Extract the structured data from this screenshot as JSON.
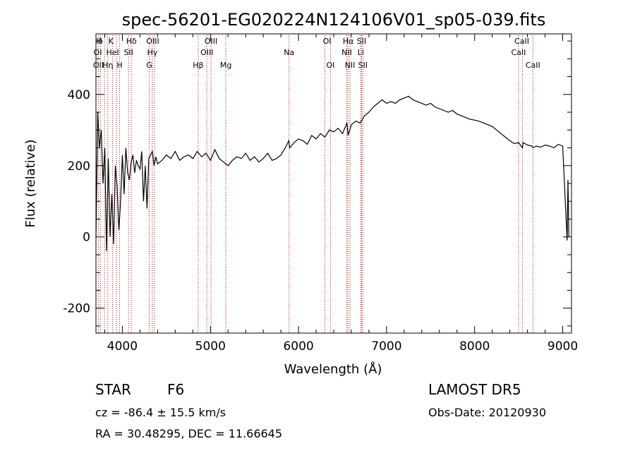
{
  "chart_data": {
    "type": "line",
    "title": "spec-56201-EG020224N124106V01_sp05-039.fits",
    "xlabel": "Wavelength (Å)",
    "ylabel": "Flux (relative)",
    "xlim": [
      3700,
      9100
    ],
    "ylim": [
      -270,
      570
    ],
    "grid": false,
    "xticks": [
      4000,
      5000,
      6000,
      7000,
      8000,
      9000
    ],
    "yticks": [
      -200,
      0,
      200,
      400
    ],
    "line_color": "#000000",
    "marker_line_color": "#cc0000",
    "series": [
      {
        "x": [
          3700,
          3720,
          3740,
          3760,
          3780,
          3800,
          3820,
          3840,
          3860,
          3880,
          3900,
          3920,
          3940,
          3960,
          3980,
          4000,
          4020,
          4040,
          4060,
          4080,
          4100,
          4120,
          4140,
          4160,
          4180,
          4200,
          4220,
          4240,
          4260,
          4280,
          4300,
          4320,
          4340,
          4360,
          4380,
          4400,
          4450,
          4500,
          4550,
          4600,
          4650,
          4700,
          4750,
          4800,
          4850,
          4900,
          4950,
          5000,
          5050,
          5100,
          5150,
          5200,
          5250,
          5300,
          5350,
          5400,
          5450,
          5500,
          5550,
          5600,
          5650,
          5700,
          5750,
          5800,
          5850,
          5890,
          5900,
          5950,
          6000,
          6050,
          6100,
          6150,
          6200,
          6250,
          6300,
          6350,
          6400,
          6450,
          6500,
          6550,
          6563,
          6600,
          6650,
          6700,
          6750,
          6800,
          6850,
          6900,
          6950,
          7000,
          7050,
          7100,
          7150,
          7200,
          7250,
          7300,
          7350,
          7400,
          7450,
          7500,
          7550,
          7600,
          7650,
          7700,
          7750,
          7800,
          7850,
          7900,
          7950,
          8000,
          8050,
          8100,
          8150,
          8200,
          8250,
          8300,
          8350,
          8400,
          8450,
          8500,
          8542,
          8550,
          8600,
          8650,
          8662,
          8700,
          8750,
          8800,
          8850,
          8900,
          8950,
          9000,
          9050,
          9060,
          9070
        ],
        "values": [
          0,
          350,
          250,
          300,
          150,
          250,
          -40,
          220,
          0,
          120,
          -20,
          200,
          140,
          20,
          100,
          230,
          120,
          250,
          180,
          160,
          210,
          230,
          180,
          215,
          200,
          190,
          240,
          100,
          200,
          80,
          220,
          230,
          240,
          200,
          225,
          205,
          215,
          230,
          220,
          240,
          215,
          225,
          230,
          220,
          240,
          225,
          235,
          215,
          245,
          220,
          210,
          200,
          215,
          225,
          220,
          235,
          215,
          225,
          210,
          220,
          235,
          215,
          220,
          230,
          250,
          270,
          250,
          265,
          275,
          270,
          260,
          285,
          275,
          290,
          280,
          300,
          295,
          305,
          290,
          320,
          285,
          315,
          325,
          320,
          340,
          350,
          365,
          375,
          385,
          375,
          380,
          375,
          385,
          390,
          395,
          385,
          380,
          375,
          370,
          375,
          365,
          360,
          355,
          350,
          355,
          345,
          340,
          335,
          330,
          328,
          325,
          320,
          315,
          310,
          300,
          290,
          280,
          270,
          262,
          265,
          250,
          265,
          258,
          255,
          250,
          255,
          252,
          258,
          255,
          250,
          260,
          255,
          -10,
          160,
          0
        ]
      }
    ],
    "line_markers": [
      {
        "label": "Hδ",
        "x": 4102
      },
      {
        "label": "Hγ",
        "x": 4340
      },
      {
        "label": "Hβ",
        "x": 4861
      },
      {
        "label": "Hα",
        "x": 6563
      }
    ],
    "annotations": {
      "line_labels": [
        {
          "text": "H",
          "x": 3735,
          "row": 1
        },
        {
          "text": "δ",
          "x": 3752,
          "row": 1
        },
        {
          "text": "K",
          "x": 3870,
          "row": 1
        },
        {
          "text": "Hδ",
          "x": 4102,
          "row": 1
        },
        {
          "text": "OIII",
          "x": 4345,
          "row": 1
        },
        {
          "text": "OIII",
          "x": 5005,
          "row": 1
        },
        {
          "text": "OI",
          "x": 6325,
          "row": 1
        },
        {
          "text": "Hα",
          "x": 6565,
          "row": 1
        },
        {
          "text": "SII",
          "x": 6716,
          "row": 1
        },
        {
          "text": "CaII",
          "x": 8535,
          "row": 1
        },
        {
          "text": "OI",
          "x": 3720,
          "row": 2
        },
        {
          "text": "HeI",
          "x": 3889,
          "row": 2
        },
        {
          "text": "SII",
          "x": 4070,
          "row": 2
        },
        {
          "text": "Hγ",
          "x": 4340,
          "row": 2
        },
        {
          "text": "OIII",
          "x": 4960,
          "row": 2
        },
        {
          "text": "Na",
          "x": 5893,
          "row": 2
        },
        {
          "text": "NII",
          "x": 6548,
          "row": 2
        },
        {
          "text": "Li",
          "x": 6708,
          "row": 2
        },
        {
          "text": "CaII",
          "x": 8498,
          "row": 2
        },
        {
          "text": "OII",
          "x": 3727,
          "row": 3
        },
        {
          "text": "Hη",
          "x": 3835,
          "row": 3
        },
        {
          "text": "H",
          "x": 3968,
          "row": 3
        },
        {
          "text": "G",
          "x": 4305,
          "row": 3
        },
        {
          "text": "Hβ",
          "x": 4861,
          "row": 3
        },
        {
          "text": "Mg",
          "x": 5175,
          "row": 3
        },
        {
          "text": "OI",
          "x": 6363,
          "row": 3
        },
        {
          "text": "NII",
          "x": 6584,
          "row": 3
        },
        {
          "text": "SII",
          "x": 6731,
          "row": 3
        },
        {
          "text": "CaII",
          "x": 8662,
          "row": 3
        }
      ],
      "vertical_lines_x": [
        3727,
        3750,
        3798,
        3835,
        3889,
        3934,
        3968,
        4070,
        4102,
        4305,
        4340,
        4363,
        4861,
        4959,
        5007,
        5175,
        5893,
        6300,
        6363,
        6548,
        6563,
        6584,
        6708,
        6716,
        6731,
        8498,
        8542,
        8662
      ]
    }
  },
  "info": {
    "object_type": "STAR",
    "subclass": "F6",
    "survey": "LAMOST DR5",
    "cz_text": "cz = -86.4 ± 15.5 km/s",
    "obs_date_text": "Obs-Date: 20120930",
    "coords_text": "RA =  30.48295, DEC =  11.66645"
  }
}
